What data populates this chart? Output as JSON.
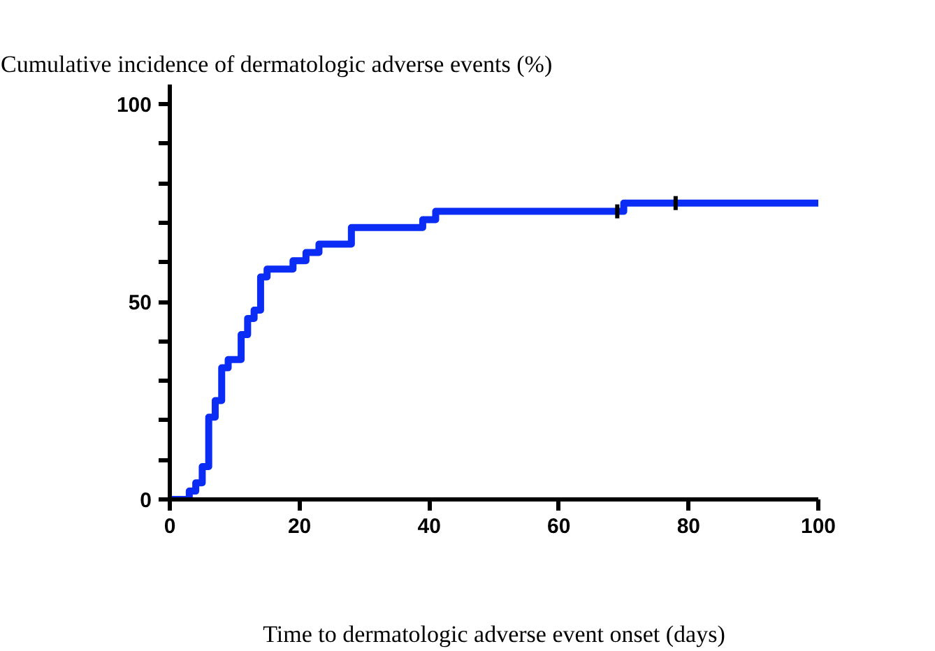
{
  "chart_data": {
    "type": "step",
    "title": "Cumulative incidence of dermatologic adverse events (%)",
    "xlabel": "Time to dermatologic adverse event onset (days)",
    "xlim": [
      0,
      100
    ],
    "xticks": [
      0,
      20,
      40,
      60,
      80,
      100
    ],
    "ylim": [
      0,
      105
    ],
    "yticks": [
      0,
      {
        "value": 10,
        "label": null
      },
      {
        "value": 20,
        "label": null
      },
      {
        "value": 30,
        "label": null
      },
      {
        "value": 40,
        "label": null
      },
      50,
      {
        "value": 60,
        "label": null
      },
      {
        "value": 70,
        "label": null
      },
      {
        "value": 80,
        "label": null
      },
      {
        "value": 90,
        "label": null
      },
      100
    ],
    "series": [
      {
        "color": "#0a2cf5",
        "x": [
          0,
          3,
          4,
          5,
          6,
          7,
          8,
          9,
          11,
          12,
          13,
          14,
          15,
          19,
          21,
          23,
          28,
          39,
          41,
          70,
          100
        ],
        "values": [
          0,
          2.1,
          4.2,
          8.3,
          20.8,
          25,
          33.3,
          35.4,
          41.7,
          45.8,
          47.9,
          56.3,
          58.3,
          60.4,
          62.5,
          64.6,
          68.8,
          70.8,
          72.9,
          75,
          75
        ]
      },
      {
        "type": "scatter",
        "color": "#000000",
        "x": [
          69,
          78
        ],
        "values": [
          72.9,
          75
        ]
      }
    ]
  }
}
